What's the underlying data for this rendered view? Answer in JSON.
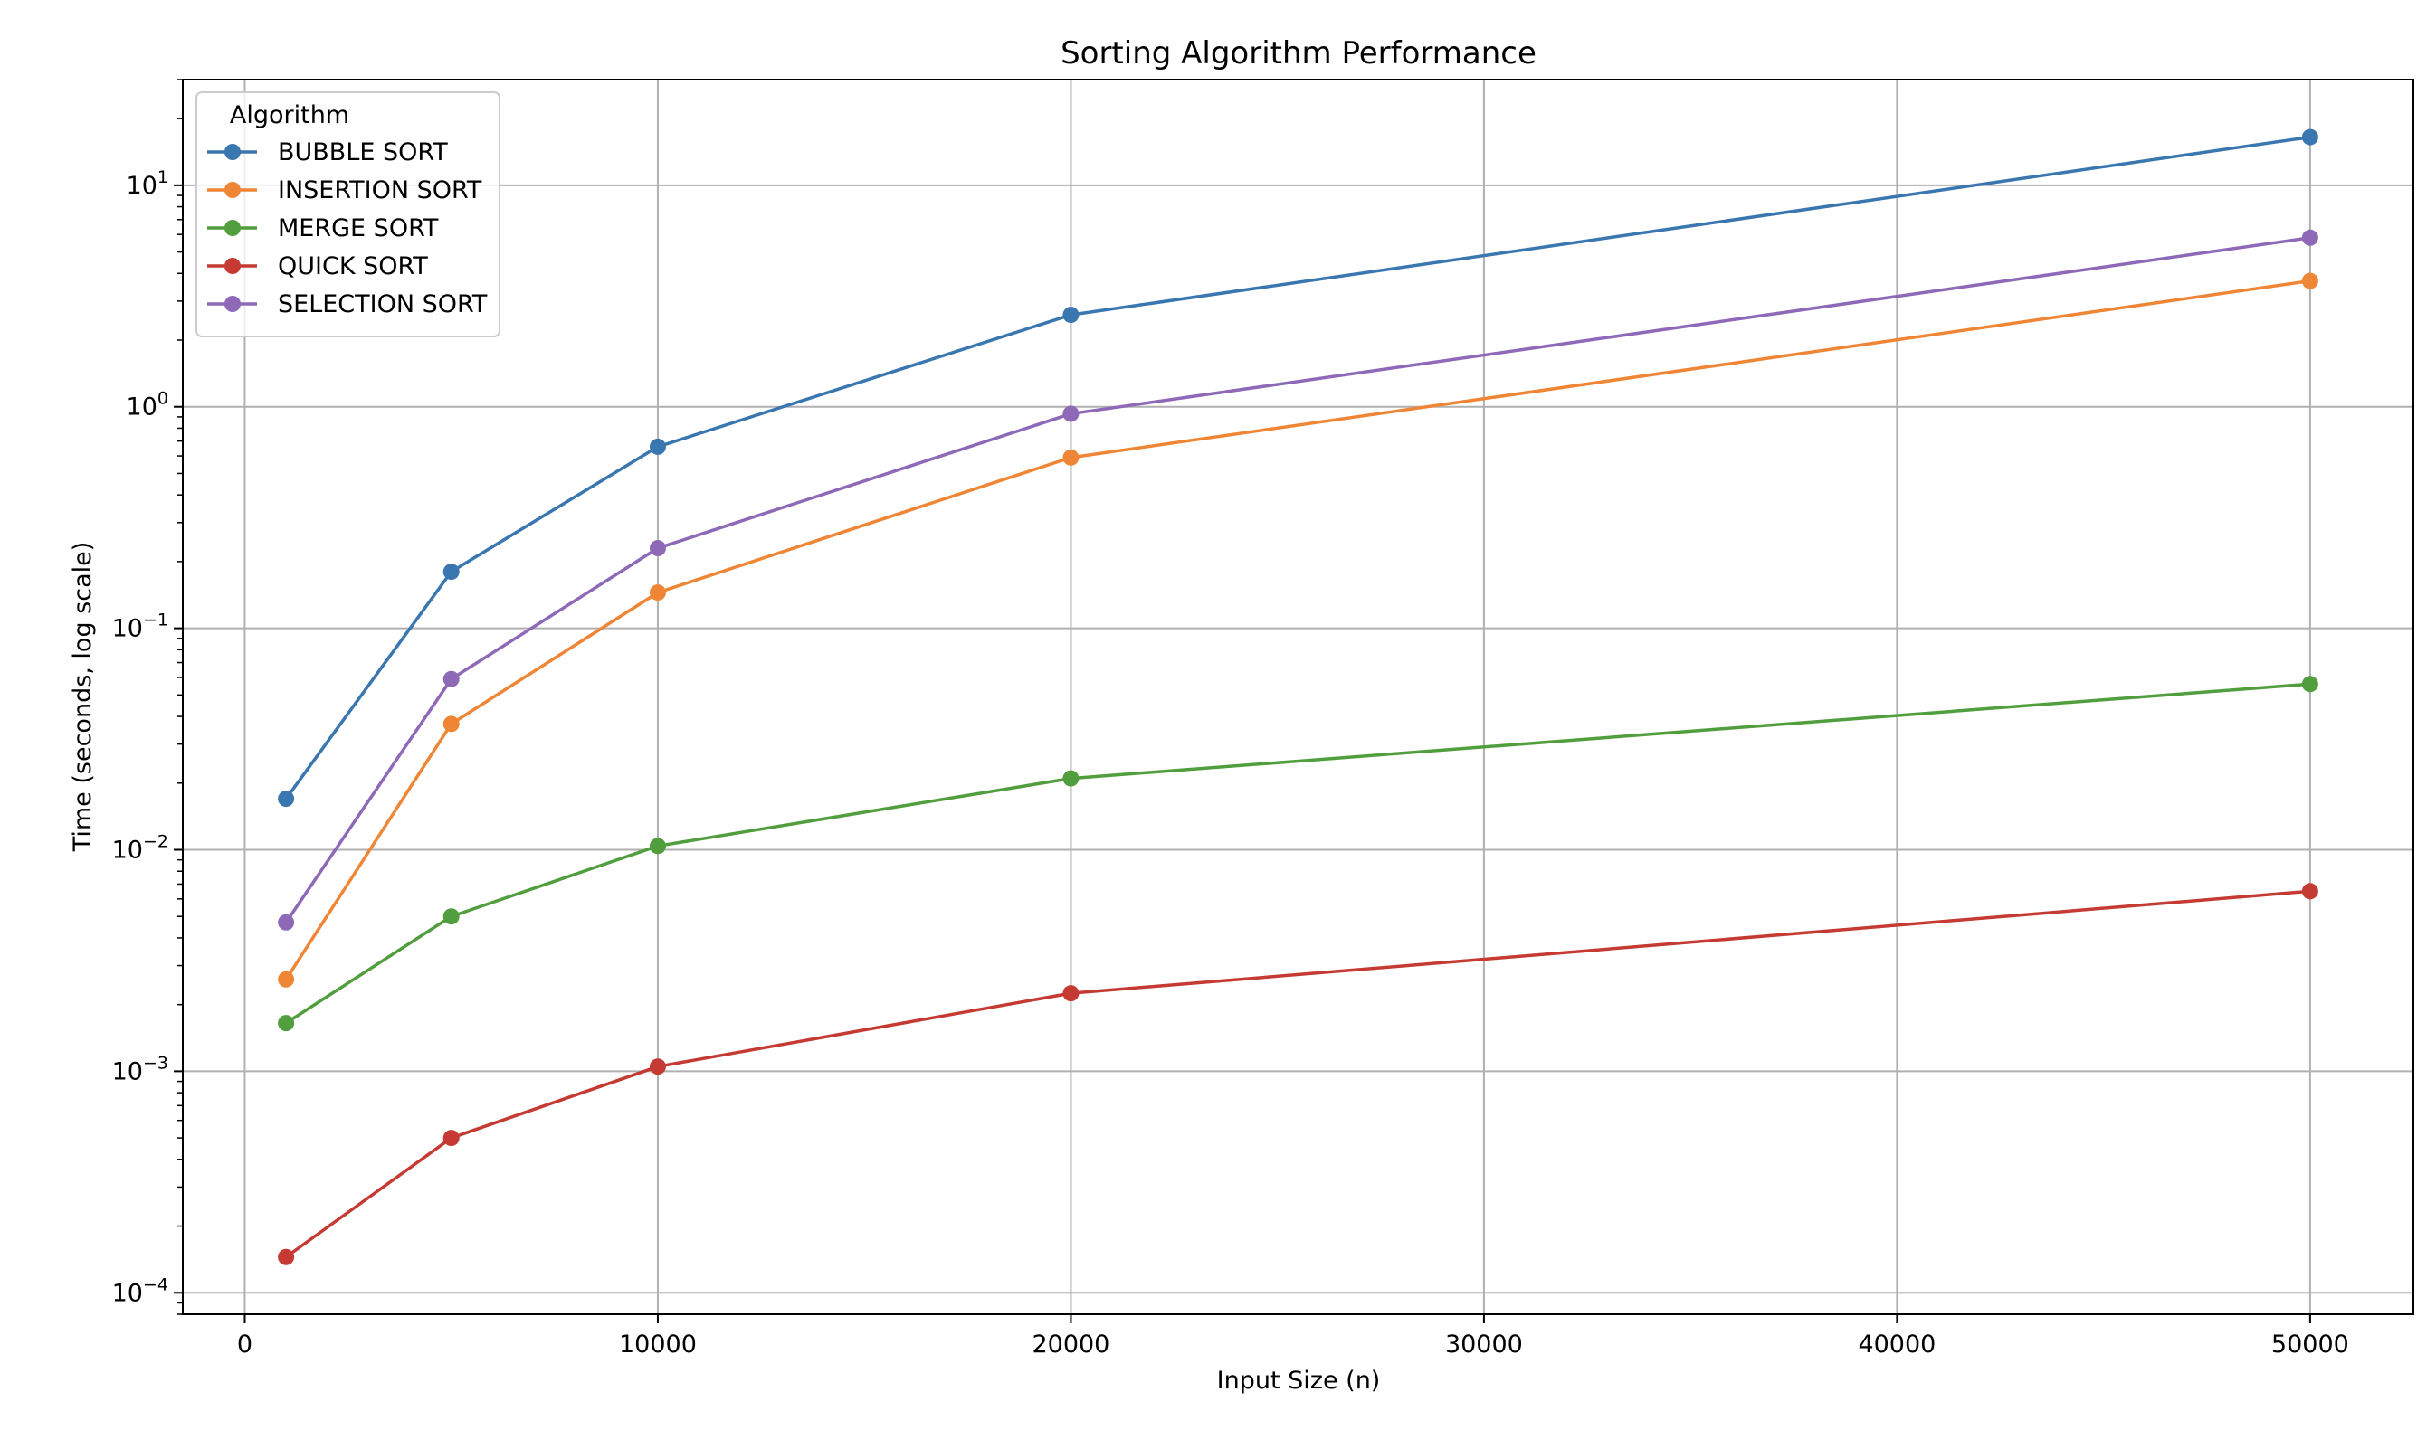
{
  "chart_data": {
    "type": "line",
    "title": "Sorting Algorithm Performance",
    "xlabel": "Input Size (n)",
    "ylabel": "Time (seconds, log scale)",
    "x": [
      1000,
      5000,
      10000,
      20000,
      50000
    ],
    "xlim": [
      -1500,
      52500
    ],
    "ylim": [
      8e-05,
      30
    ],
    "yscale": "log",
    "grid": true,
    "legend": {
      "title": "Algorithm",
      "position": "top-left"
    },
    "x_ticks": [
      {
        "value": 0,
        "label": "0"
      },
      {
        "value": 10000,
        "label": "10000"
      },
      {
        "value": 20000,
        "label": "20000"
      },
      {
        "value": 30000,
        "label": "30000"
      },
      {
        "value": 40000,
        "label": "40000"
      },
      {
        "value": 50000,
        "label": "50000"
      }
    ],
    "y_ticks": [
      {
        "value": 0.0001,
        "base": "10",
        "exp": "−4"
      },
      {
        "value": 0.001,
        "base": "10",
        "exp": "−3"
      },
      {
        "value": 0.01,
        "base": "10",
        "exp": "−2"
      },
      {
        "value": 0.1,
        "base": "10",
        "exp": "−1"
      },
      {
        "value": 1,
        "base": "10",
        "exp": "0"
      },
      {
        "value": 10,
        "base": "10",
        "exp": "1"
      }
    ],
    "series": [
      {
        "name": "BUBBLE SORT",
        "color": "#3a76af",
        "values": [
          0.017,
          0.18,
          0.66,
          2.6,
          16.5
        ]
      },
      {
        "name": "INSERTION SORT",
        "color": "#ef8636",
        "values": [
          0.0026,
          0.037,
          0.145,
          0.59,
          3.7
        ]
      },
      {
        "name": "MERGE SORT",
        "color": "#519e3e",
        "values": [
          0.00165,
          0.005,
          0.0104,
          0.021,
          0.056
        ]
      },
      {
        "name": "QUICK SORT",
        "color": "#c53a32",
        "values": [
          0.000145,
          0.0005,
          0.00105,
          0.00225,
          0.0065
        ]
      },
      {
        "name": "SELECTION SORT",
        "color": "#8d69b8",
        "values": [
          0.0047,
          0.059,
          0.23,
          0.93,
          5.8
        ]
      }
    ]
  }
}
